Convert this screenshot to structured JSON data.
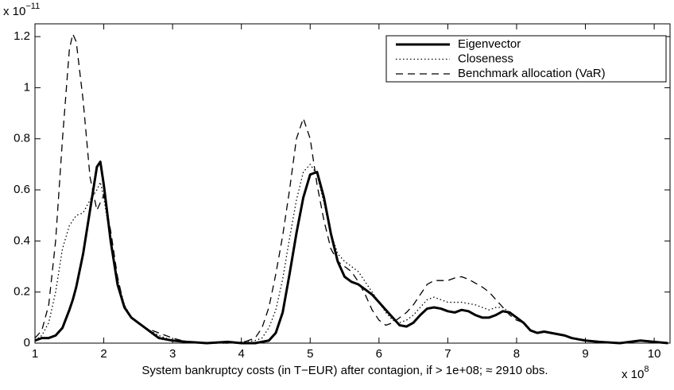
{
  "chart_data": {
    "type": "line",
    "xlabel": "System bankruptcy costs (in T−EUR) after contagion, if > 1e+08; ≈ 2910 obs.",
    "x_multiplier": {
      "base": "x 10",
      "exponent": "8"
    },
    "y_multiplier": {
      "base": "x 10",
      "exponent": "−11"
    },
    "xlim": [
      1,
      10.23
    ],
    "ylim": [
      0,
      1.25
    ],
    "xticks": [
      1,
      2,
      3,
      4,
      5,
      6,
      7,
      8,
      9,
      10
    ],
    "yticks": [
      0,
      0.2,
      0.4,
      0.6,
      0.8,
      1,
      1.2
    ],
    "grid": false,
    "legend_position": "upper-right",
    "x": [
      1.0,
      1.1,
      1.2,
      1.3,
      1.4,
      1.5,
      1.55,
      1.6,
      1.7,
      1.8,
      1.9,
      1.95,
      2.0,
      2.1,
      2.2,
      2.3,
      2.4,
      2.5,
      2.6,
      2.7,
      2.8,
      2.9,
      3.0,
      3.2,
      3.5,
      3.8,
      4.0,
      4.2,
      4.3,
      4.4,
      4.5,
      4.6,
      4.7,
      4.8,
      4.9,
      5.0,
      5.1,
      5.2,
      5.3,
      5.4,
      5.5,
      5.6,
      5.7,
      5.8,
      5.9,
      6.0,
      6.1,
      6.2,
      6.3,
      6.4,
      6.5,
      6.6,
      6.7,
      6.8,
      6.9,
      7.0,
      7.1,
      7.2,
      7.3,
      7.4,
      7.5,
      7.6,
      7.7,
      7.8,
      7.9,
      8.0,
      8.1,
      8.2,
      8.3,
      8.4,
      8.5,
      8.6,
      8.7,
      8.8,
      8.9,
      9.0,
      9.2,
      9.5,
      9.8,
      10.0,
      10.2
    ],
    "series": [
      {
        "name": "Eigenvector",
        "color": "#000000",
        "style": "solid",
        "width": 3,
        "values": [
          0.01,
          0.02,
          0.02,
          0.03,
          0.06,
          0.13,
          0.17,
          0.22,
          0.35,
          0.52,
          0.69,
          0.71,
          0.62,
          0.4,
          0.23,
          0.14,
          0.1,
          0.08,
          0.06,
          0.04,
          0.02,
          0.015,
          0.01,
          0.005,
          0,
          0.005,
          0,
          0,
          0.005,
          0.01,
          0.04,
          0.12,
          0.27,
          0.43,
          0.57,
          0.66,
          0.67,
          0.57,
          0.43,
          0.32,
          0.26,
          0.24,
          0.23,
          0.21,
          0.19,
          0.16,
          0.13,
          0.1,
          0.07,
          0.065,
          0.08,
          0.11,
          0.135,
          0.14,
          0.135,
          0.125,
          0.12,
          0.13,
          0.125,
          0.11,
          0.1,
          0.1,
          0.11,
          0.125,
          0.12,
          0.1,
          0.08,
          0.05,
          0.04,
          0.045,
          0.04,
          0.035,
          0.03,
          0.02,
          0.015,
          0.01,
          0.005,
          0,
          0.01,
          0.005,
          0
        ]
      },
      {
        "name": "Closeness",
        "color": "#000000",
        "style": "dotted",
        "width": 1.3,
        "values": [
          0.01,
          0.03,
          0.08,
          0.2,
          0.37,
          0.46,
          0.48,
          0.5,
          0.51,
          0.56,
          0.6,
          0.63,
          0.57,
          0.4,
          0.25,
          0.15,
          0.1,
          0.08,
          0.06,
          0.045,
          0.03,
          0.02,
          0.01,
          0.005,
          0,
          0,
          0.005,
          0.01,
          0.02,
          0.06,
          0.13,
          0.25,
          0.41,
          0.56,
          0.67,
          0.7,
          0.66,
          0.55,
          0.43,
          0.35,
          0.32,
          0.3,
          0.28,
          0.24,
          0.2,
          0.16,
          0.12,
          0.09,
          0.08,
          0.09,
          0.11,
          0.14,
          0.17,
          0.18,
          0.17,
          0.16,
          0.16,
          0.16,
          0.155,
          0.15,
          0.14,
          0.13,
          0.14,
          0.14,
          0.12,
          0.1,
          0.08,
          0.05,
          0.04,
          0.045,
          0.04,
          0.035,
          0.03,
          0.02,
          0.015,
          0.01,
          0.005,
          0,
          0.01,
          0.005,
          0
        ]
      },
      {
        "name": "Benchmark allocation (VaR)",
        "color": "#000000",
        "style": "dashed",
        "width": 1.3,
        "values": [
          0.02,
          0.05,
          0.15,
          0.4,
          0.8,
          1.15,
          1.21,
          1.18,
          0.95,
          0.65,
          0.52,
          0.55,
          0.58,
          0.44,
          0.26,
          0.14,
          0.1,
          0.08,
          0.06,
          0.05,
          0.04,
          0.03,
          0.02,
          0.005,
          0,
          0,
          0,
          0.02,
          0.06,
          0.14,
          0.27,
          0.42,
          0.6,
          0.8,
          0.88,
          0.8,
          0.62,
          0.48,
          0.37,
          0.32,
          0.3,
          0.28,
          0.24,
          0.19,
          0.13,
          0.09,
          0.07,
          0.08,
          0.1,
          0.12,
          0.15,
          0.19,
          0.23,
          0.245,
          0.245,
          0.245,
          0.255,
          0.26,
          0.25,
          0.235,
          0.22,
          0.2,
          0.17,
          0.14,
          0.11,
          0.09,
          0.08,
          0.05,
          0.04,
          0.045,
          0.04,
          0.035,
          0.03,
          0.02,
          0.015,
          0.01,
          0.005,
          0,
          0.01,
          0.005,
          0
        ]
      }
    ]
  }
}
